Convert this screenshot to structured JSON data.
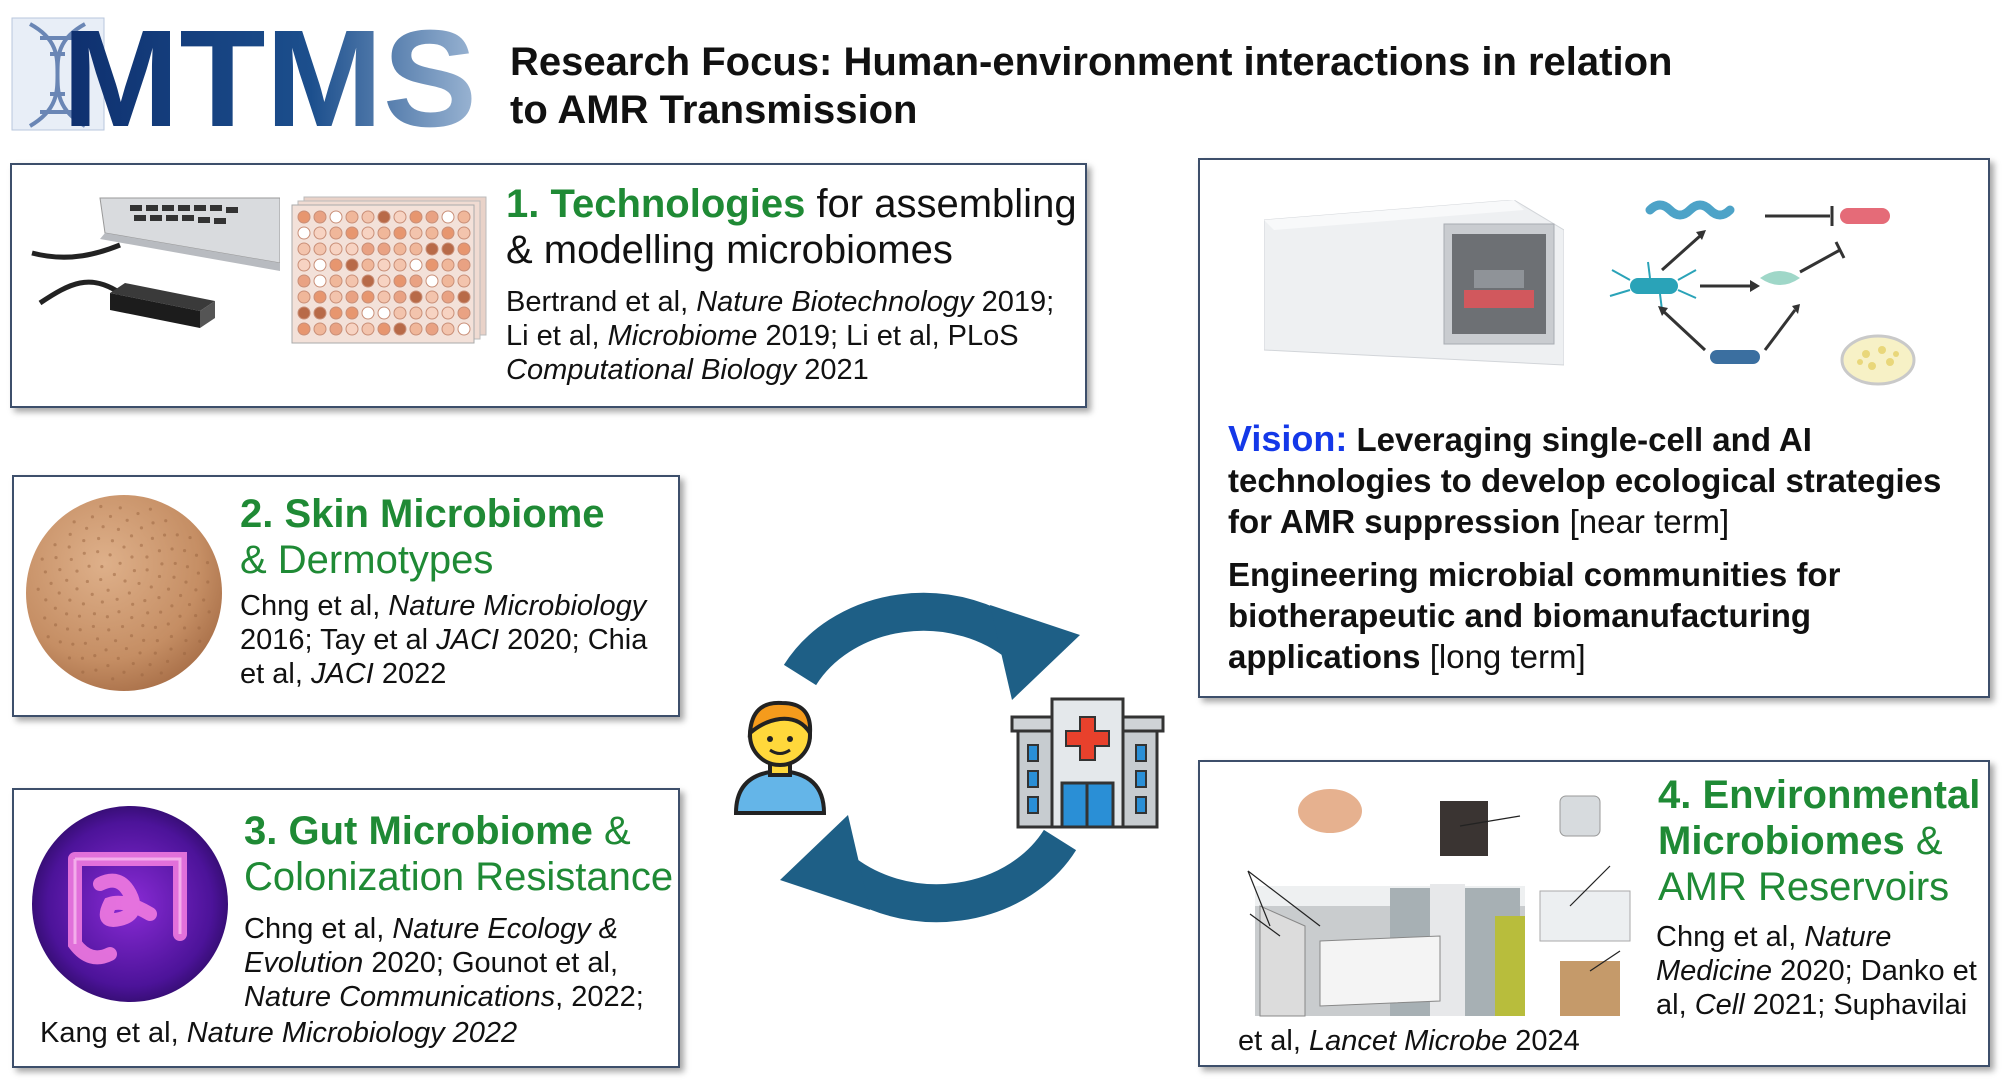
{
  "logo": {
    "text": "MTMS"
  },
  "title": {
    "line1": "Research Focus: Human-environment interactions in relation",
    "line2": "to AMR Transmission"
  },
  "tech": {
    "num": "1.",
    "keyword": "Technologies",
    "rest1": " for assembling",
    "line2": "& modelling microbiomes",
    "refs": [
      [
        "Bertrand et al, ",
        "Nature Biotechnology",
        " 2019;"
      ],
      [
        "Li et al, ",
        "Microbiome",
        " 2019; Li et al, PLoS"
      ],
      [
        "",
        "Computational Biology",
        " 2021"
      ]
    ]
  },
  "skin": {
    "line1": "2. Skin Microbiome",
    "line2": "& Dermotypes",
    "refs": [
      [
        "Chng et al, ",
        "Nature Microbiology",
        ""
      ],
      [
        "2016; Tay et al ",
        "JACI",
        " 2020; Chia"
      ],
      [
        "et al, ",
        "JACI",
        " 2022"
      ]
    ]
  },
  "gut": {
    "line1a": "3. Gut Microbiome",
    "line1b": " &",
    "line2": "Colonization Resistance",
    "refs": [
      [
        "Chng et al, ",
        "Nature Ecology &",
        ""
      ],
      [
        "",
        "Evolution",
        " 2020; Gounot et al,"
      ],
      [
        "",
        "Nature Communications",
        ", 2022;"
      ]
    ],
    "last": [
      "Kang et al, ",
      "Nature Microbiology 2022",
      ""
    ]
  },
  "vision": {
    "label": "Vision:",
    "p1": [
      " Leveraging single-cell and AI",
      "technologies to develop ecological strategies",
      "for AMR suppression"
    ],
    "p1_note": " [near term]",
    "p2": [
      "Engineering microbial communities for",
      "biotherapeutic and biomanufacturing",
      "applications"
    ],
    "p2_note": " [long term]"
  },
  "env": {
    "line1": "4. Environmental",
    "line2a": "Microbiomes",
    "line2b": " &",
    "line3": "AMR Reservoirs",
    "refs": [
      [
        "Chng et al, ",
        "Nature",
        ""
      ],
      [
        "",
        "Medicine",
        " 2020; Danko et"
      ],
      [
        "al, ",
        "Cell",
        " 2021; Suphavilai"
      ]
    ],
    "last": [
      "et al, ",
      "Lancet Microbe",
      " 2024"
    ]
  },
  "colors": {
    "green": "#1f8a35",
    "blue": "#1438e8",
    "arrow": "#1e5f86",
    "border": "#3d4f6b"
  },
  "icons": [
    "dna-icon",
    "laptop-icon",
    "well-plate-icon",
    "skin-icon",
    "gut-icon",
    "person-icon",
    "hospital-icon",
    "cycle-arrows-icon",
    "instrument-icon",
    "bacteria-network-icon",
    "petri-dish-icon",
    "hospital-room-photo"
  ]
}
